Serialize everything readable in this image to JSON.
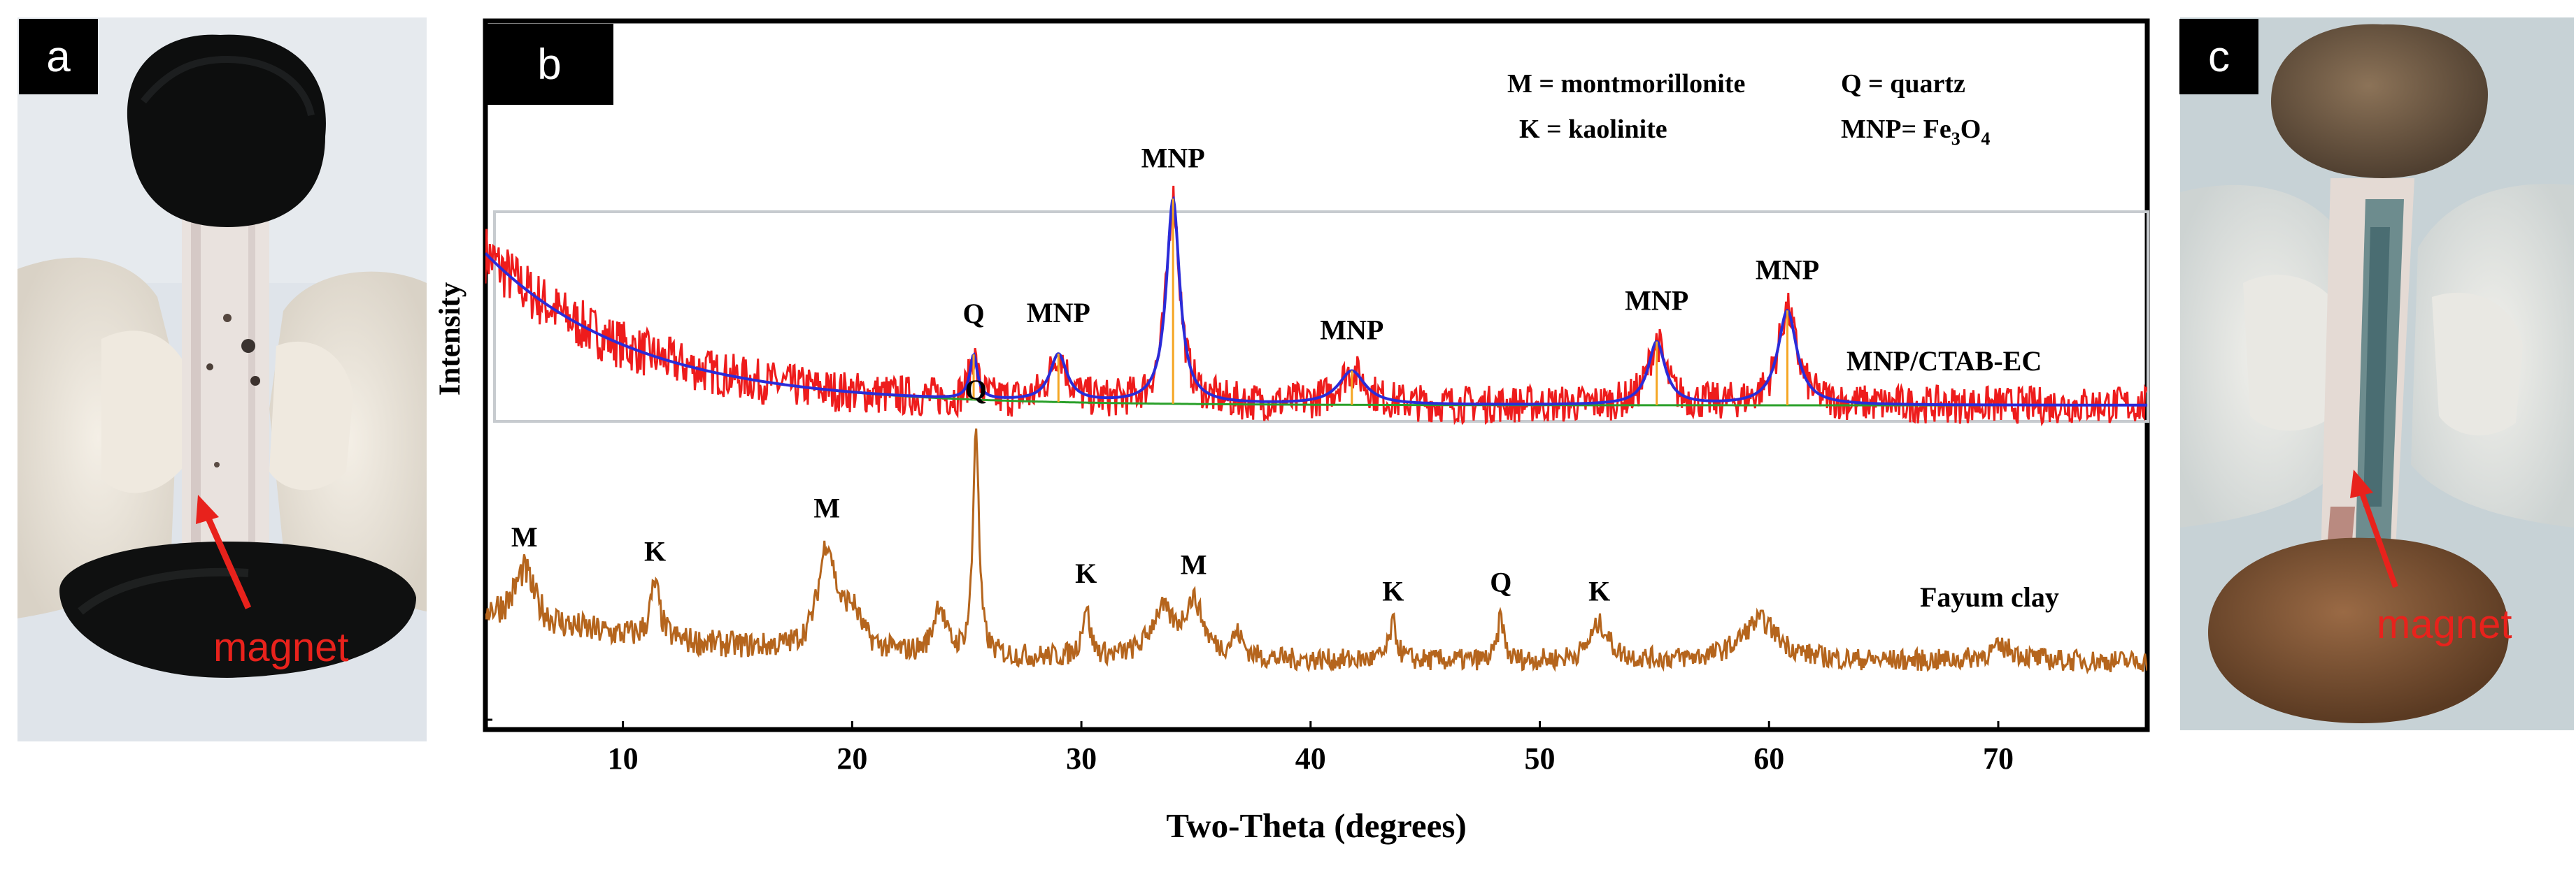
{
  "panels": {
    "a": {
      "label": "a",
      "annotation": "magnet"
    },
    "b": {
      "label": "b"
    },
    "c": {
      "label": "c",
      "annotation": "magnet"
    }
  },
  "chart_data": {
    "type": "line",
    "xlabel": "Two-Theta (degrees)",
    "ylabel": "Intensity",
    "xlim": [
      4,
      76.5
    ],
    "xticks": [
      10,
      20,
      30,
      40,
      50,
      60,
      70
    ],
    "legend_key": [
      {
        "abbr": "M",
        "meaning": "montmorillonite",
        "text": "M = montmorillonite"
      },
      {
        "abbr": "Q",
        "meaning": "quartz",
        "text": "Q = quartz"
      },
      {
        "abbr": "K",
        "meaning": "kaolinite",
        "text": "K = kaolinite"
      },
      {
        "abbr": "MNP",
        "meaning": "Fe3O4",
        "text_prefix": "MNP= Fe",
        "sub1": "3",
        "mid": "O",
        "sub2": "4"
      }
    ],
    "series": [
      {
        "name": "MNP/CTAB-EC",
        "color": "#ee1c1c",
        "fit_color": "#2b2bd8",
        "background_color": "#2aa02a",
        "background": {
          "offset": 0.1,
          "amplitude": 1.45,
          "decay": 6.5
        },
        "peaks": [
          {
            "label": "Q",
            "x": 25.3,
            "height": 0.42,
            "width": 0.2
          },
          {
            "label": "MNP",
            "x": 29.0,
            "height": 0.45,
            "width": 0.45
          },
          {
            "label": "MNP",
            "x": 34.0,
            "height": 1.95,
            "width": 0.35
          },
          {
            "label": "MNP",
            "x": 41.8,
            "height": 0.32,
            "width": 0.7
          },
          {
            "label": "MNP",
            "x": 55.1,
            "height": 0.6,
            "width": 0.45
          },
          {
            "label": "MNP",
            "x": 60.8,
            "height": 0.9,
            "width": 0.5
          }
        ]
      },
      {
        "name": "Fayum clay",
        "color": "#b5651d",
        "background": {
          "offset": 0.1,
          "amplitude": 0.55,
          "decay": 9
        },
        "peaks": [
          {
            "label": "M",
            "x": 5.7,
            "height": 0.55,
            "width": 0.5
          },
          {
            "label": "K",
            "x": 11.4,
            "height": 0.6,
            "width": 0.25
          },
          {
            "label": "M",
            "x": 18.9,
            "height": 1.15,
            "width": 0.45
          },
          {
            "label": "",
            "x": 20.0,
            "height": 0.4,
            "width": 0.5
          },
          {
            "label": "",
            "x": 23.8,
            "height": 0.55,
            "width": 0.3
          },
          {
            "label": "Q",
            "x": 25.4,
            "height": 2.55,
            "width": 0.15
          },
          {
            "label": "K",
            "x": 30.2,
            "height": 0.55,
            "width": 0.2
          },
          {
            "label": "",
            "x": 33.5,
            "height": 0.5,
            "width": 0.6
          },
          {
            "label": "M",
            "x": 34.9,
            "height": 0.6,
            "width": 0.5
          },
          {
            "label": "",
            "x": 36.8,
            "height": 0.25,
            "width": 0.3
          },
          {
            "label": "K",
            "x": 43.6,
            "height": 0.4,
            "width": 0.2
          },
          {
            "label": "Q",
            "x": 48.3,
            "height": 0.5,
            "width": 0.15
          },
          {
            "label": "K",
            "x": 52.6,
            "height": 0.4,
            "width": 0.5
          },
          {
            "label": "",
            "x": 59.6,
            "height": 0.45,
            "width": 1.0
          },
          {
            "label": "",
            "x": 70.2,
            "height": 0.15,
            "width": 0.8
          }
        ]
      }
    ]
  }
}
